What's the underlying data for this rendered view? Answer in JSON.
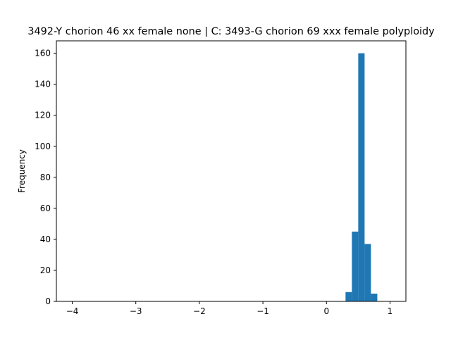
{
  "chart_data": {
    "type": "bar",
    "title": "3492-Y chorion 46 xx female none | C: 3493-G chorion 69 xxx female polyploidy",
    "xlabel": "",
    "ylabel": "Frequency",
    "xlim": [
      -4.25,
      1.25
    ],
    "ylim": [
      0,
      168
    ],
    "x_ticks": [
      -4,
      -3,
      -2,
      -1,
      0,
      1
    ],
    "y_ticks": [
      0,
      20,
      40,
      60,
      80,
      100,
      120,
      140,
      160
    ],
    "grid": false,
    "bar_color": "#1f77b4",
    "bins": [
      {
        "x0": 0.3,
        "x1": 0.4,
        "count": 6
      },
      {
        "x0": 0.4,
        "x1": 0.5,
        "count": 45
      },
      {
        "x0": 0.5,
        "x1": 0.6,
        "count": 160
      },
      {
        "x0": 0.6,
        "x1": 0.7,
        "count": 37
      },
      {
        "x0": 0.7,
        "x1": 0.8,
        "count": 5
      }
    ]
  }
}
